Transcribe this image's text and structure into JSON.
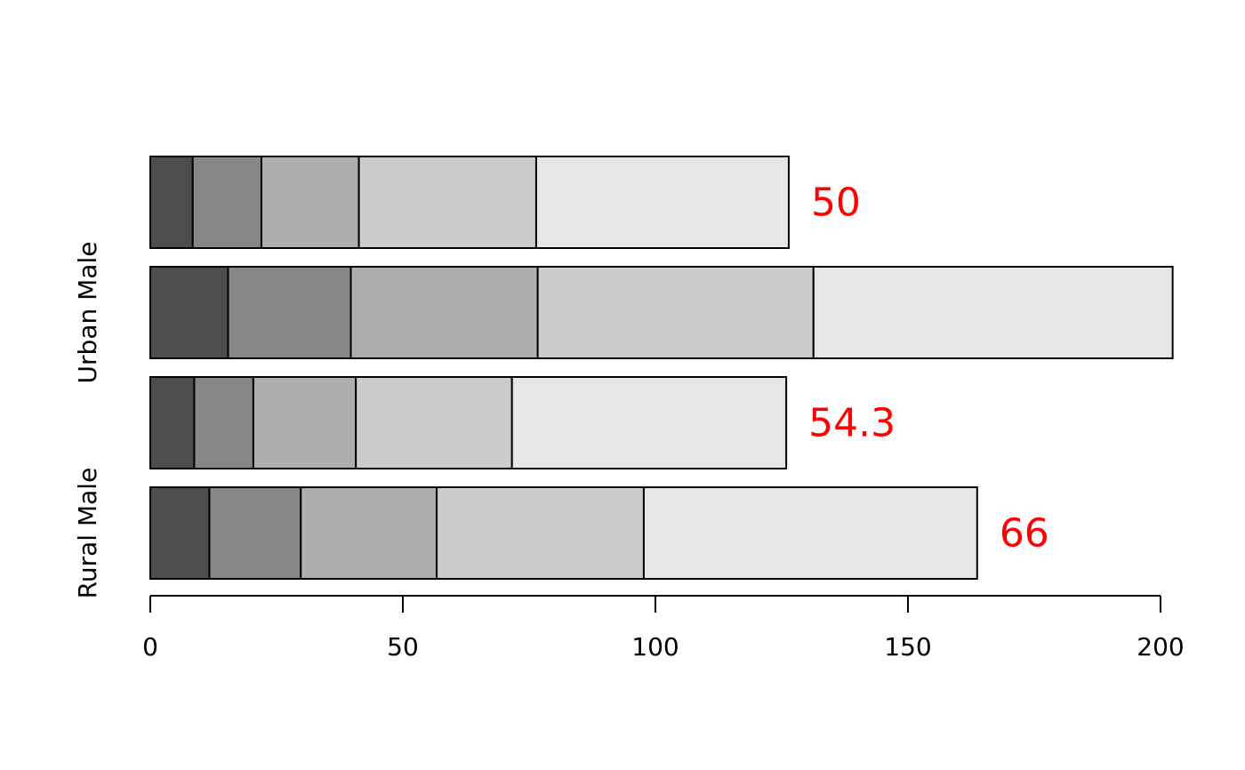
{
  "chart_data": {
    "type": "stacked-bar-horizontal",
    "categories": [
      "Rural Male",
      null,
      "Urban Male",
      null
    ],
    "series": [
      {
        "color": "#4d4d4d",
        "values": [
          11.7,
          8.7,
          15.4,
          8.4
        ]
      },
      {
        "color": "#878787",
        "values": [
          18.1,
          11.7,
          24.3,
          13.6
        ]
      },
      {
        "color": "#aeaeae",
        "values": [
          26.9,
          20.3,
          37,
          19.3
        ]
      },
      {
        "color": "#cccccc",
        "values": [
          41,
          30.9,
          54.6,
          35.1
        ]
      },
      {
        "color": "#e6e6e6",
        "values": [
          66,
          54.3,
          71.1,
          50
        ],
        "value_labels": [
          "66",
          "54.3",
          null,
          "50"
        ]
      }
    ],
    "label_color": "#ff0000",
    "xlim": [
      0,
      200
    ],
    "xticks": [
      0,
      50,
      100,
      150,
      200
    ]
  }
}
